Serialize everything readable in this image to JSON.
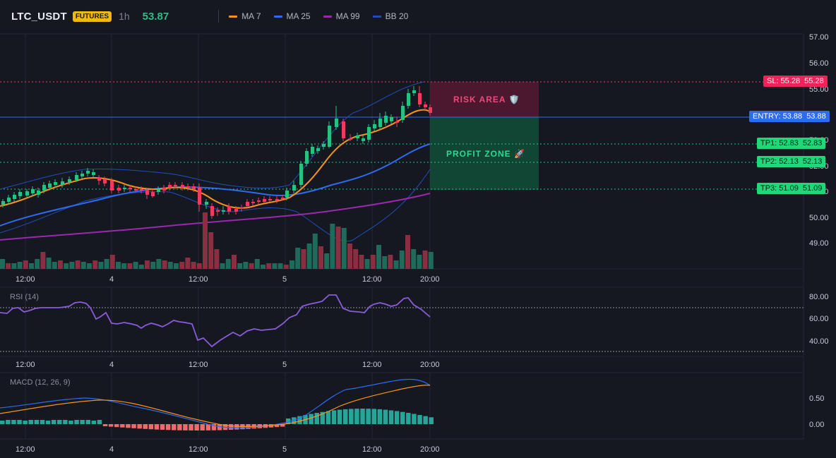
{
  "header": {
    "symbol": "LTC_USDT",
    "badge": "FUTURES",
    "timeframe": "1h",
    "last_price": "53.87"
  },
  "legend": [
    {
      "label": "MA 7",
      "color": "#f7931a"
    },
    {
      "label": "MA 25",
      "color": "#2f6bef"
    },
    {
      "label": "MA 99",
      "color": "#9c27b0"
    },
    {
      "label": "BB 20",
      "color": "#1e4fb8"
    }
  ],
  "price_axis": {
    "ticks": [
      "57.00",
      "56.00",
      "55.00",
      "53.00",
      "52.00",
      "51.00",
      "50.00",
      "49.00"
    ],
    "tags": {
      "sl_label": "SL: 55.28",
      "sl_value": "55.28",
      "entry_label": "ENTRY: 53.88",
      "entry_value": "53.88",
      "tp1_label": "TP1: 52.83",
      "tp1_value": "52.83",
      "tp2_label": "TP2: 52.13",
      "tp2_value": "52.13",
      "tp3_label": "TP3: 51.09",
      "tp3_value": "51.09"
    }
  },
  "zones": {
    "risk": "RISK AREA 🛡️",
    "profit": "PROFIT ZONE 🚀"
  },
  "time_axis": [
    "12:00",
    "4",
    "12:00",
    "5",
    "12:00",
    "20:00"
  ],
  "rsi": {
    "title": "RSI (14)",
    "ticks": [
      "80.00",
      "60.00",
      "40.00"
    ]
  },
  "macd": {
    "title": "MACD (12, 26, 9)",
    "ticks": [
      "0.50",
      "0.00"
    ]
  },
  "colors": {
    "up": "#26c281",
    "down": "#f23a5d",
    "bg": "#151820",
    "grid": "#232733"
  }
}
